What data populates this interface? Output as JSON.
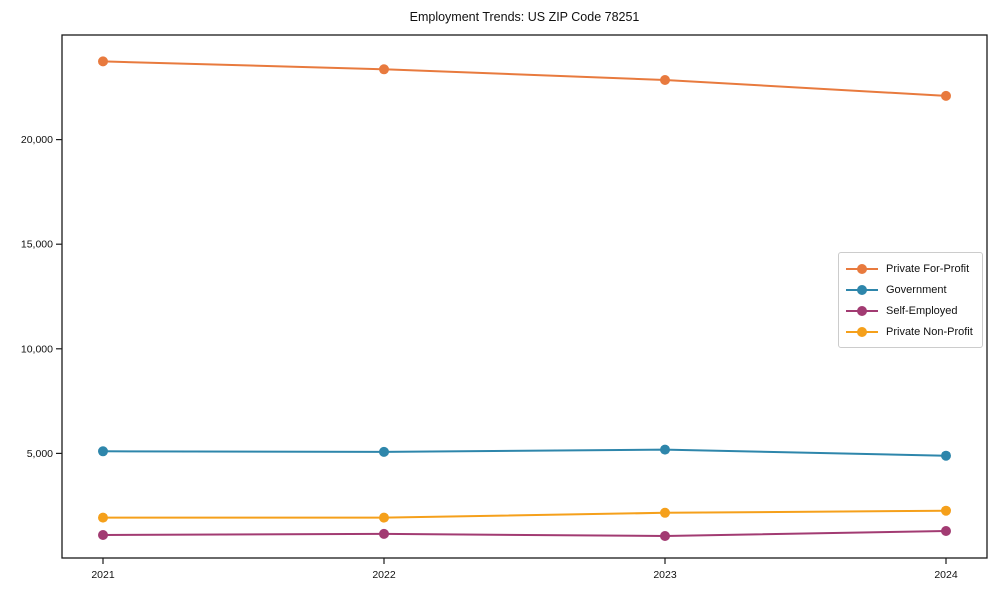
{
  "title": "Employment Trends: US ZIP Code 78251",
  "axis_color": "#1a1a1a",
  "legend_border_color": "#cccccc",
  "chart_data": {
    "type": "line",
    "title": "Employment Trends: US ZIP Code 78251",
    "x": [
      2021,
      2022,
      2023,
      2024
    ],
    "xtick_labels": [
      "2021",
      "2022",
      "2023",
      "2024"
    ],
    "yticks": [
      5000,
      10000,
      15000,
      20000
    ],
    "ytick_labels": [
      "5,000",
      "10,000",
      "15,000",
      "20,000"
    ],
    "ylim": [
      0,
      25000
    ],
    "xlabel": "",
    "ylabel": "",
    "grid": false,
    "marker": "circle",
    "legend_position": "center right",
    "series": [
      {
        "name": "Private For-Profit",
        "color": "#E87A3E",
        "values": [
          23740,
          23360,
          22850,
          22090
        ]
      },
      {
        "name": "Government",
        "color": "#2E86AB",
        "values": [
          5100,
          5070,
          5180,
          4890
        ]
      },
      {
        "name": "Self-Employed",
        "color": "#A23B72",
        "values": [
          1100,
          1150,
          1050,
          1290
        ]
      },
      {
        "name": "Private Non-Profit",
        "color": "#F5A01B",
        "values": [
          1930,
          1930,
          2160,
          2260
        ]
      }
    ]
  }
}
